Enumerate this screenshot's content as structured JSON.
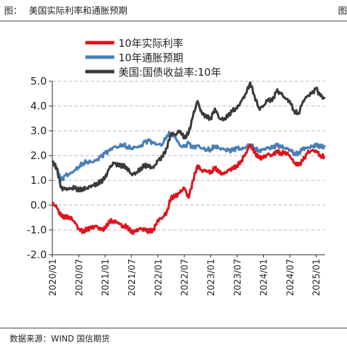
{
  "figure": {
    "label": "图：",
    "title": "美国实际利率和通胀预期",
    "edge_glyph": "图",
    "source": "数据来源：WIND  国信期货"
  },
  "colors": {
    "real_rate": "#e0121b",
    "inflation": "#4a7fb5",
    "treasury": "#3a3a3a",
    "grid": "#b8b8b8"
  },
  "chart_data": {
    "type": "line",
    "title": "",
    "xlabel": "",
    "ylabel": "",
    "ylim": [
      -2.0,
      5.0
    ],
    "yticks": [
      "5.0",
      "4.0",
      "3.0",
      "2.0",
      "1.0",
      "0.0",
      "-1.0",
      "-2.0"
    ],
    "xlim": [
      "2020-01",
      "2025-03"
    ],
    "xticks": [
      "2020/01",
      "2020/07",
      "2021/01",
      "2021/07",
      "2022/01",
      "2022/07",
      "2023/01",
      "2023/07",
      "2024/01",
      "2024/07",
      "2025/01"
    ],
    "grid": "horizontal dashed",
    "legend_position": "top-left",
    "series": [
      {
        "name": "10年实际利率",
        "color": "#e0121b",
        "x": [
          "2020-01",
          "2020-02",
          "2020-03",
          "2020-04",
          "2020-05",
          "2020-06",
          "2020-07",
          "2020-08",
          "2020-09",
          "2020-10",
          "2020-11",
          "2020-12",
          "2021-01",
          "2021-02",
          "2021-03",
          "2021-04",
          "2021-05",
          "2021-06",
          "2021-07",
          "2021-08",
          "2021-09",
          "2021-10",
          "2021-11",
          "2021-12",
          "2022-01",
          "2022-02",
          "2022-03",
          "2022-04",
          "2022-05",
          "2022-06",
          "2022-07",
          "2022-08",
          "2022-09",
          "2022-10",
          "2022-11",
          "2022-12",
          "2023-01",
          "2023-02",
          "2023-03",
          "2023-04",
          "2023-05",
          "2023-06",
          "2023-07",
          "2023-08",
          "2023-09",
          "2023-10",
          "2023-11",
          "2023-12",
          "2024-01",
          "2024-02",
          "2024-03",
          "2024-04",
          "2024-05",
          "2024-06",
          "2024-07",
          "2024-08",
          "2024-09",
          "2024-10",
          "2024-11",
          "2024-12",
          "2025-01",
          "2025-02",
          "2025-03"
        ],
        "values": [
          0.1,
          -0.1,
          -0.45,
          -0.5,
          -0.5,
          -0.65,
          -0.95,
          -1.05,
          -0.95,
          -0.9,
          -0.85,
          -1.0,
          -0.95,
          -0.65,
          -0.65,
          -0.7,
          -0.85,
          -0.85,
          -1.1,
          -1.05,
          -0.95,
          -1.0,
          -1.05,
          -1.0,
          -0.6,
          -0.5,
          -0.3,
          0.3,
          0.35,
          0.5,
          0.7,
          0.3,
          1.0,
          1.6,
          1.4,
          1.4,
          1.3,
          1.5,
          1.3,
          1.25,
          1.4,
          1.5,
          1.6,
          1.8,
          2.1,
          2.45,
          2.1,
          1.9,
          1.9,
          2.05,
          2.0,
          2.2,
          2.1,
          2.15,
          2.0,
          1.7,
          1.6,
          1.8,
          2.1,
          2.2,
          2.2,
          2.0,
          1.95
        ]
      },
      {
        "name": "10年通胀预期",
        "color": "#4a7fb5",
        "x": [
          "2020-01",
          "2020-02",
          "2020-03",
          "2020-04",
          "2020-05",
          "2020-06",
          "2020-07",
          "2020-08",
          "2020-09",
          "2020-10",
          "2020-11",
          "2020-12",
          "2021-01",
          "2021-02",
          "2021-03",
          "2021-04",
          "2021-05",
          "2021-06",
          "2021-07",
          "2021-08",
          "2021-09",
          "2021-10",
          "2021-11",
          "2021-12",
          "2022-01",
          "2022-02",
          "2022-03",
          "2022-04",
          "2022-05",
          "2022-06",
          "2022-07",
          "2022-08",
          "2022-09",
          "2022-10",
          "2022-11",
          "2022-12",
          "2023-01",
          "2023-02",
          "2023-03",
          "2023-04",
          "2023-05",
          "2023-06",
          "2023-07",
          "2023-08",
          "2023-09",
          "2023-10",
          "2023-11",
          "2023-12",
          "2024-01",
          "2024-02",
          "2024-03",
          "2024-04",
          "2024-05",
          "2024-06",
          "2024-07",
          "2024-08",
          "2024-09",
          "2024-10",
          "2024-11",
          "2024-12",
          "2025-01",
          "2025-02",
          "2025-03"
        ],
        "values": [
          1.7,
          1.5,
          1.0,
          1.2,
          1.25,
          1.4,
          1.55,
          1.7,
          1.75,
          1.75,
          1.8,
          1.95,
          2.1,
          2.2,
          2.35,
          2.35,
          2.45,
          2.35,
          2.3,
          2.35,
          2.35,
          2.55,
          2.6,
          2.5,
          2.45,
          2.45,
          2.8,
          2.9,
          2.75,
          2.4,
          2.35,
          2.5,
          2.3,
          2.4,
          2.3,
          2.25,
          2.25,
          2.4,
          2.3,
          2.25,
          2.2,
          2.2,
          2.3,
          2.25,
          2.35,
          2.45,
          2.3,
          2.2,
          2.25,
          2.3,
          2.3,
          2.4,
          2.35,
          2.3,
          2.25,
          2.1,
          2.1,
          2.3,
          2.3,
          2.35,
          2.4,
          2.35,
          2.35
        ]
      },
      {
        "name": "美国:国债收益率:10年",
        "color": "#3a3a3a",
        "x": [
          "2020-01",
          "2020-02",
          "2020-03",
          "2020-04",
          "2020-05",
          "2020-06",
          "2020-07",
          "2020-08",
          "2020-09",
          "2020-10",
          "2020-11",
          "2020-12",
          "2021-01",
          "2021-02",
          "2021-03",
          "2021-04",
          "2021-05",
          "2021-06",
          "2021-07",
          "2021-08",
          "2021-09",
          "2021-10",
          "2021-11",
          "2021-12",
          "2022-01",
          "2022-02",
          "2022-03",
          "2022-04",
          "2022-05",
          "2022-06",
          "2022-07",
          "2022-08",
          "2022-09",
          "2022-10",
          "2022-11",
          "2022-12",
          "2023-01",
          "2023-02",
          "2023-03",
          "2023-04",
          "2023-05",
          "2023-06",
          "2023-07",
          "2023-08",
          "2023-09",
          "2023-10",
          "2023-11",
          "2023-12",
          "2024-01",
          "2024-02",
          "2024-03",
          "2024-04",
          "2024-05",
          "2024-06",
          "2024-07",
          "2024-08",
          "2024-09",
          "2024-10",
          "2024-11",
          "2024-12",
          "2025-01",
          "2025-02",
          "2025-03"
        ],
        "values": [
          1.8,
          1.5,
          0.7,
          0.65,
          0.65,
          0.7,
          0.6,
          0.65,
          0.7,
          0.8,
          0.85,
          0.95,
          1.1,
          1.5,
          1.7,
          1.6,
          1.6,
          1.5,
          1.25,
          1.3,
          1.45,
          1.6,
          1.55,
          1.5,
          1.8,
          1.95,
          2.3,
          2.9,
          2.85,
          3.0,
          2.7,
          2.9,
          3.6,
          4.2,
          3.7,
          3.6,
          3.5,
          3.9,
          3.5,
          3.45,
          3.6,
          3.8,
          3.9,
          4.2,
          4.5,
          4.95,
          4.4,
          3.9,
          4.0,
          4.25,
          4.2,
          4.6,
          4.5,
          4.3,
          4.2,
          3.8,
          3.7,
          4.2,
          4.4,
          4.5,
          4.7,
          4.4,
          4.3
        ]
      }
    ]
  }
}
